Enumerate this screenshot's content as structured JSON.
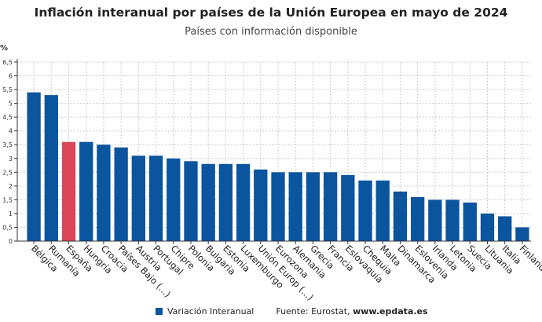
{
  "chart_data": {
    "type": "bar",
    "title": "Inflación interanual por países de la Unión Europea en mayo de 2024",
    "subtitle": "Países con información disponible",
    "ylabel": "%",
    "ylim": [
      0,
      6.5
    ],
    "yticks": [
      "0",
      "0,5",
      "1",
      "1,5",
      "2",
      "2,5",
      "3",
      "3,5",
      "4",
      "4,5",
      "5",
      "5,5",
      "6",
      "6,5"
    ],
    "grid": true,
    "categories": [
      "Bélgica",
      "Rumanía",
      "España",
      "Hungría",
      "Croacia",
      "Países Bajo (...)",
      "Austria",
      "Portugal",
      "Chipre",
      "Polonia",
      "Bulgaria",
      "Estonia",
      "Luxemburgo",
      "Unión Europ (...)",
      "Eurozona",
      "Alemania",
      "Grecia",
      "Francia",
      "Eslovaquia",
      "Chequia",
      "Malta",
      "Dinamarca",
      "Eslovenia",
      "Irlanda",
      "Letonia",
      "Suecia",
      "Lituania",
      "Italia",
      "Finlandia"
    ],
    "series": [
      {
        "name": "Variación Interanual",
        "values": [
          5.4,
          5.3,
          3.6,
          3.6,
          3.5,
          3.4,
          3.1,
          3.1,
          3.0,
          2.9,
          2.8,
          2.8,
          2.8,
          2.6,
          2.5,
          2.5,
          2.5,
          2.5,
          2.4,
          2.2,
          2.2,
          1.8,
          1.6,
          1.5,
          1.5,
          1.4,
          1.0,
          0.9,
          0.5
        ]
      }
    ],
    "highlight": "España",
    "colors": {
      "bar": "#0b559f",
      "highlight": "#d9475a"
    },
    "legend": "bottom"
  },
  "source": {
    "label": "Fuente: Eurostat, ",
    "site": "www.epdata.es"
  }
}
